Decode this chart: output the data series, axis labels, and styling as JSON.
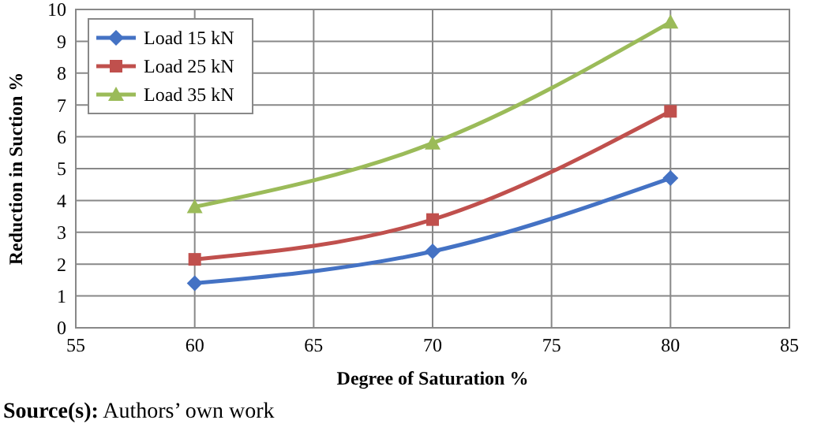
{
  "chart_data": {
    "type": "line",
    "xlabel": "Degree of Saturation %",
    "ylabel": "Reduction in Suction %",
    "annotations": [
      "Source(s): Authors’ own work"
    ],
    "x": [
      60,
      70,
      80
    ],
    "series": [
      {
        "name": "Load 15 kN",
        "color": "#4472c4",
        "marker": "diamond",
        "values": [
          1.4,
          2.4,
          4.7
        ]
      },
      {
        "name": "Load 25 kN",
        "color": "#c0504d",
        "marker": "square",
        "values": [
          2.15,
          3.4,
          6.8
        ]
      },
      {
        "name": "Load 35 kN",
        "color": "#9bbb59",
        "marker": "triangle",
        "values": [
          3.8,
          5.8,
          9.6
        ]
      }
    ],
    "xlim": [
      55,
      85
    ],
    "xticks": [
      55,
      60,
      65,
      70,
      75,
      80,
      85
    ],
    "ylim": [
      0,
      10
    ],
    "yticks": [
      0,
      1,
      2,
      3,
      4,
      5,
      6,
      7,
      8,
      9,
      10
    ],
    "grid": true,
    "legend": "top left"
  }
}
